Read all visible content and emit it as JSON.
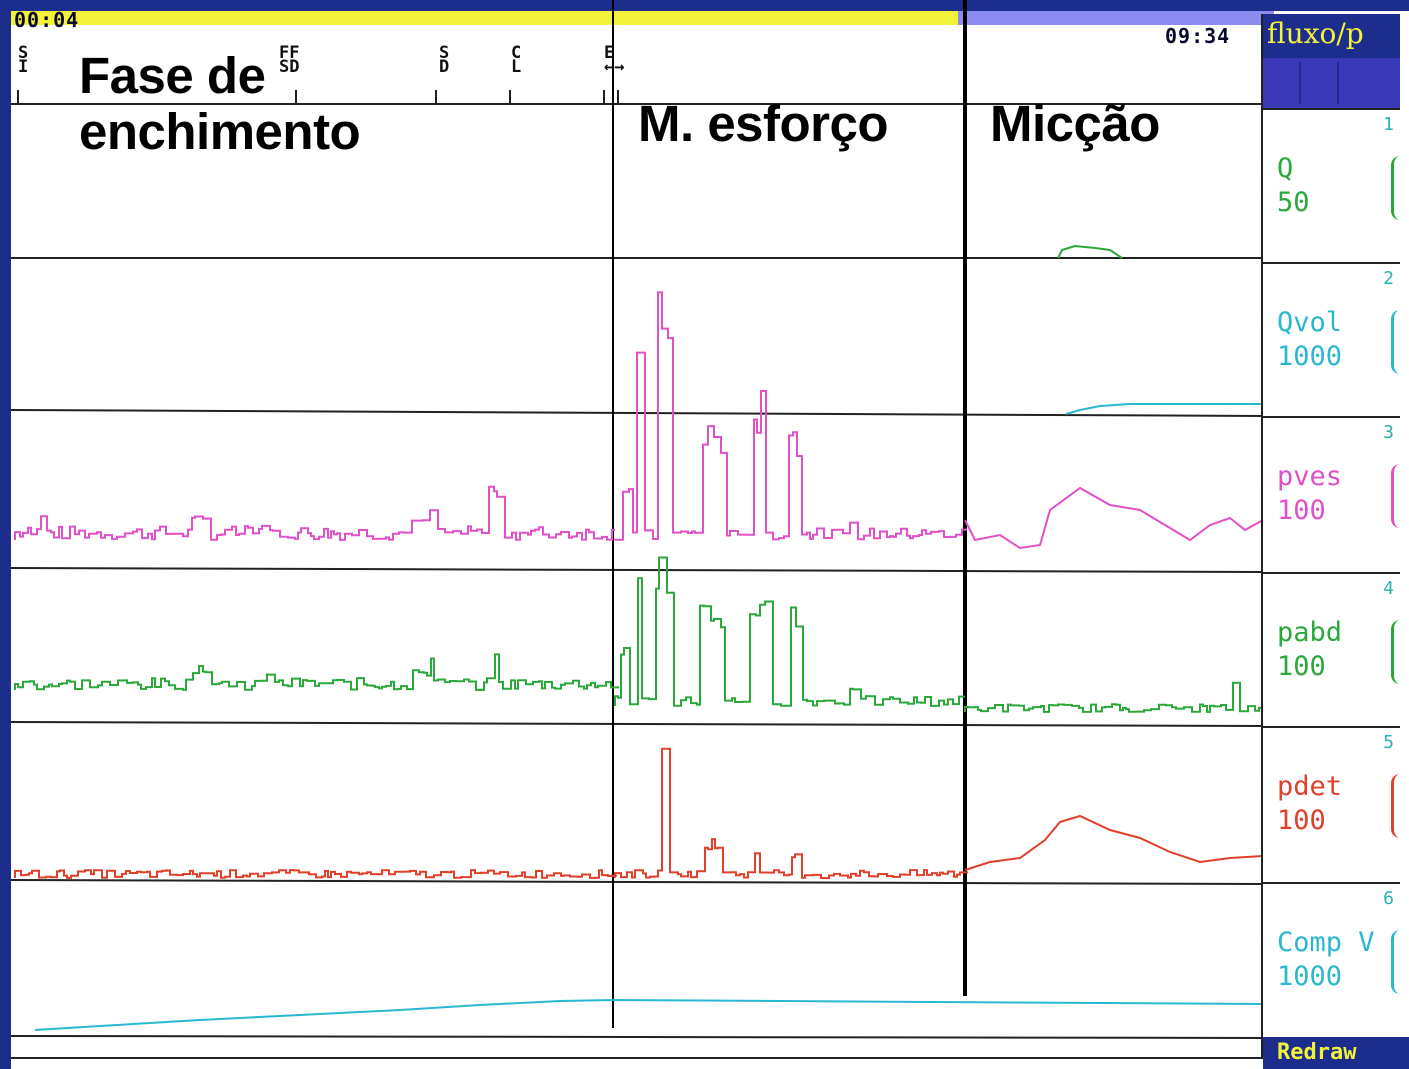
{
  "header": {
    "time_start": "00:04",
    "time_end": "09:34",
    "progress_fraction": 0.75,
    "colors": {
      "progress": "#f2f23a",
      "track": "#8c8cf0"
    }
  },
  "event_markers": [
    {
      "top": "S",
      "bottom": "I"
    },
    {
      "top": "FF",
      "bottom": "SD"
    },
    {
      "top": "S",
      "bottom": "D"
    },
    {
      "top": "C",
      "bottom": "L"
    },
    {
      "top": "E",
      "bottom": "←→"
    }
  ],
  "annotations": {
    "filling_line1": "Fase de",
    "filling_line2": "enchimento",
    "effort": "M.  esforço",
    "voiding": "Micção"
  },
  "side_panel": {
    "title": "fluxo/p",
    "channels": [
      {
        "number": "1",
        "name": "Q",
        "scale": "50",
        "color": "#2aa83a",
        "icon": "channel-scale-icon"
      },
      {
        "number": "2",
        "name": "Qvol",
        "scale": "1000",
        "color": "#2ab8d0",
        "icon": "channel-scale-icon"
      },
      {
        "number": "3",
        "name": "pves",
        "scale": "100",
        "color": "#e050c8",
        "icon": "channel-scale-icon"
      },
      {
        "number": "4",
        "name": "pabd",
        "scale": "100",
        "color": "#2aa83a",
        "icon": "channel-scale-icon"
      },
      {
        "number": "5",
        "name": "pdet",
        "scale": "100",
        "color": "#e0402a",
        "icon": "channel-scale-icon"
      },
      {
        "number": "6",
        "name": "Comp V",
        "scale": "1000",
        "color": "#2ab8d0",
        "icon": "channel-scale-icon"
      }
    ],
    "redraw_label": "Redraw"
  }
}
